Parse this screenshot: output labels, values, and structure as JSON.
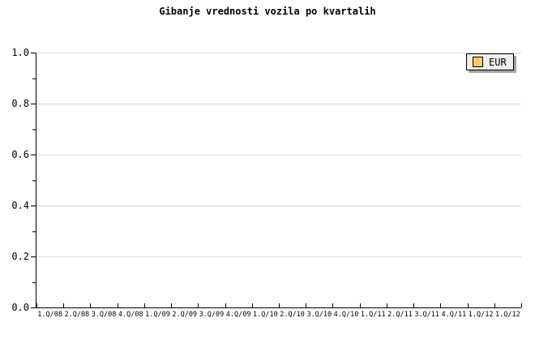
{
  "chart_data": {
    "type": "line",
    "title": "Gibanje vrednosti vozila po kvartalih",
    "xlabel": "",
    "ylabel": "",
    "categories": [
      "1.Q/08",
      "2.Q/08",
      "3.Q/08",
      "4.Q/08",
      "1.Q/09",
      "2.Q/09",
      "3.Q/09",
      "4.Q/09",
      "1.Q/10",
      "2.Q/10",
      "3.Q/10",
      "4.Q/10",
      "1.Q/11",
      "2.Q/11",
      "3.Q/11",
      "4.Q/11",
      "1.Q/12",
      "1.Q/12"
    ],
    "series": [
      {
        "name": "EUR",
        "color": "#FFC966",
        "values": []
      }
    ],
    "ylim": [
      0,
      1
    ],
    "y_axis": {
      "major_ticks": [
        "0.0",
        "0.2",
        "0.4",
        "0.6",
        "0.8",
        "1.0"
      ],
      "minor_tick_step": 0.1
    },
    "grid": {
      "horizontal_major": true,
      "vertical": false,
      "color": "#DCDCDC"
    },
    "legend": {
      "position": "top-right",
      "background": "#EEEEEE",
      "border_color": "#000000",
      "shadow_color": "#A3A3A3",
      "entries": [
        {
          "label": "EUR",
          "swatch_color": "#FFC966"
        }
      ]
    },
    "axis_color": "#000000",
    "text_color": "#000000"
  }
}
